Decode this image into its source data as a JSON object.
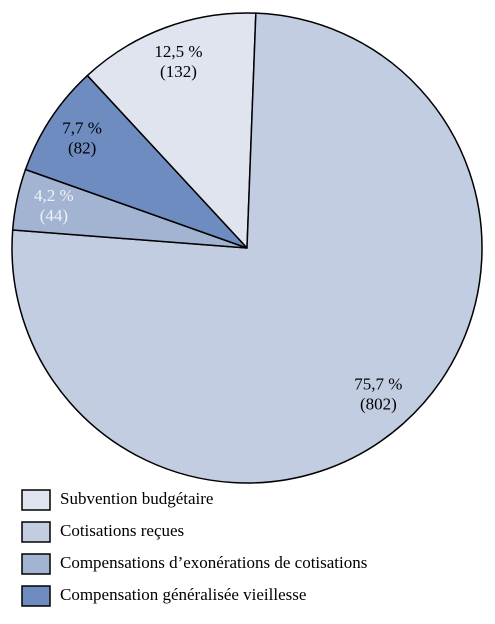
{
  "chart_data": {
    "type": "pie",
    "categories": [
      "Subvention budgétaire",
      "Cotisations reçues",
      "Compensations d’exonérations de cotisations",
      "Compensation généralisée vieillesse"
    ],
    "values": [
      12.5,
      75.7,
      4.2,
      7.7
    ],
    "value_labels": [
      "12,5 %",
      "75,7 %",
      "4,2 %",
      "7,7 %"
    ],
    "counts": [
      132,
      802,
      44,
      82
    ],
    "count_labels": [
      "(132)",
      "(802)",
      "(44)",
      "(82)"
    ],
    "colors": [
      "#dfe4ee",
      "#c3cde1",
      "#a3b4d2",
      "#6e8cc0"
    ],
    "label_colors": [
      "#000000",
      "#000000",
      "#eef1f7",
      "#000000"
    ],
    "legend": "bottom-left"
  }
}
